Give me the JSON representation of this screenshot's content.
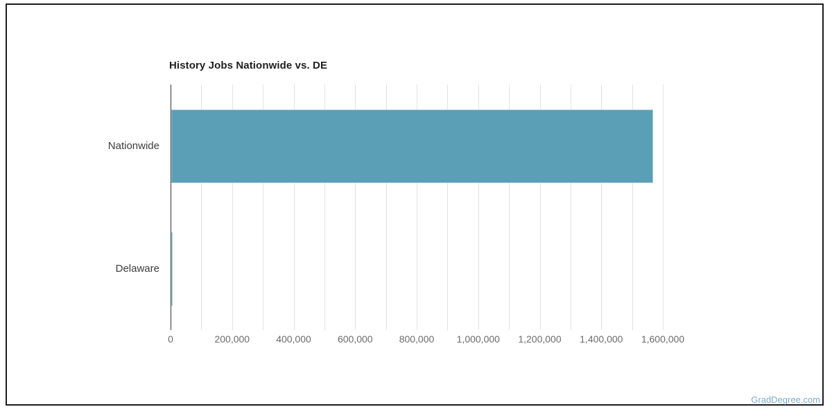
{
  "page": {
    "watermark": "GradDegree.com",
    "watermark_color": "#7faac7",
    "frame_border_color": "#1b1b1b",
    "background_color": "#ffffff"
  },
  "chart_data": {
    "type": "bar",
    "orientation": "horizontal",
    "title": "History Jobs Nationwide vs. DE",
    "categories": [
      "Nationwide",
      "Delaware"
    ],
    "values": [
      1565000,
      5500
    ],
    "xlabel": "",
    "ylabel": "",
    "xlim": [
      0,
      1600000
    ],
    "x_major_ticks": [
      0,
      200000,
      400000,
      600000,
      800000,
      1000000,
      1200000,
      1400000,
      1600000
    ],
    "x_tick_labels": [
      "0",
      "200,000",
      "400,000",
      "600,000",
      "800,000",
      "1,000,000",
      "1,200,000",
      "1,400,000",
      "1,600,000"
    ],
    "x_minor_step": 100000,
    "grid": true,
    "legend_position": "none",
    "bar_color": "#5a9fb5",
    "grid_color": "#e2e2e2",
    "axis_line_color": "#333333",
    "title_color": "#1f1f1f",
    "category_label_color": "#3c3c3c",
    "tick_label_color": "#6b6b6b"
  }
}
